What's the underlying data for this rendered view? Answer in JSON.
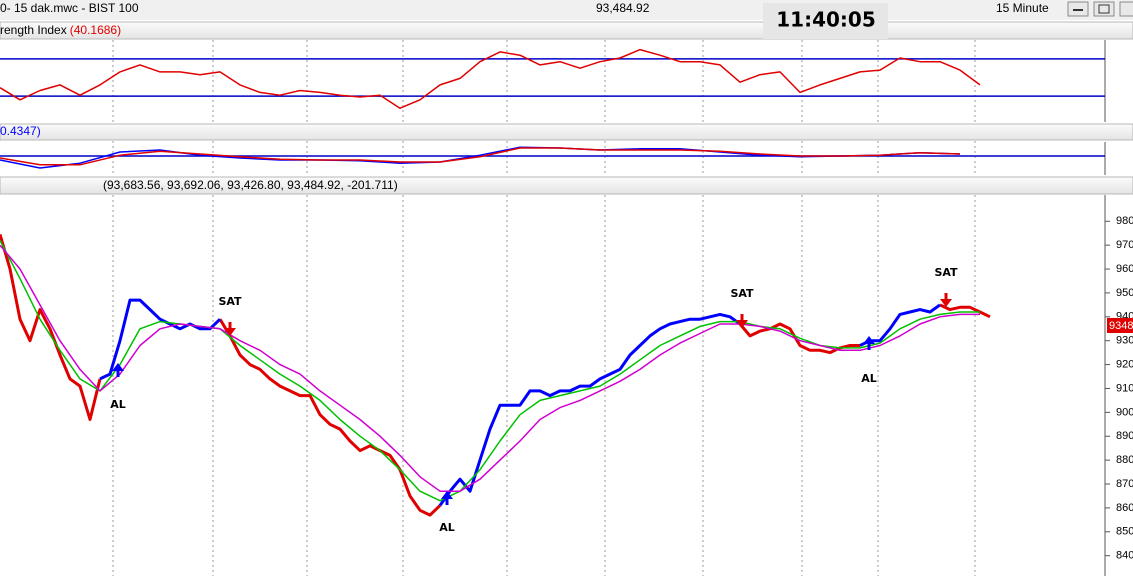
{
  "window": {
    "title": "0- 15 dak.mwc - BIST 100",
    "last_value": "93,484.92",
    "clock": "11:40:05",
    "interval": "15 Minute"
  },
  "chart_data": [
    {
      "type": "line",
      "title": "rength Index",
      "title_value": "(40.1686)",
      "ylim": [
        0,
        100
      ],
      "levels": [
        70,
        30
      ],
      "level_color": "#0000c8",
      "series": [
        {
          "color": "#e00000",
          "values": [
            39,
            26,
            36,
            42,
            31,
            42,
            56,
            63.5,
            56,
            56,
            53,
            56,
            42,
            34,
            31,
            36,
            34,
            31,
            29,
            31,
            17,
            26,
            42,
            49,
            67,
            77.5,
            74,
            63.5,
            67,
            60,
            67,
            71,
            80,
            74,
            67,
            67,
            63.5,
            45,
            53,
            56,
            34,
            42,
            49,
            56,
            58,
            71,
            67,
            67,
            58,
            42
          ]
        }
      ]
    },
    {
      "type": "line",
      "title_value": "0.4347)",
      "ylim": [
        -2,
        2
      ],
      "levels": [
        0
      ],
      "level_color": "#0000c8",
      "series": [
        {
          "color": "#0000ff",
          "values": [
            -0.5,
            -1.5,
            -0.9,
            0.5,
            0.75,
            0.1,
            -0.25,
            -0.5,
            -0.5,
            -0.6,
            -0.9,
            -0.75,
            0.1,
            1.1,
            1,
            0.75,
            0.9,
            0.9,
            0.5,
            0.1,
            -0.1,
            0,
            0.1,
            0.4,
            0.25
          ]
        },
        {
          "color": "#e00000",
          "values": [
            -0.25,
            -1.1,
            -1.1,
            0.1,
            0.6,
            0.25,
            -0.1,
            -0.4,
            -0.5,
            -0.5,
            -0.75,
            -0.75,
            -0.1,
            1,
            1,
            0.75,
            0.75,
            0.75,
            0.6,
            0.25,
            0,
            0,
            0.1,
            0.4,
            0.25
          ]
        }
      ]
    },
    {
      "type": "line",
      "title": "(93,683.56, 93,692.06, 93,426.80, 93,484.92, -201.711)",
      "ylim": [
        834,
        991
      ],
      "yticks": [
        980,
        970,
        960,
        950,
        940,
        930,
        920,
        910,
        900,
        890,
        880,
        870,
        860,
        850,
        840
      ],
      "last_label": "9348",
      "last_label_color": "#e00000",
      "series": [
        {
          "color": "#e00000",
          "width": 3,
          "values": [
            974.5,
            960,
            939,
            930,
            943,
            935,
            924,
            914,
            911,
            897,
            914,
            null,
            null,
            null,
            null,
            null,
            null,
            null,
            null,
            null,
            null,
            null,
            939,
            932,
            924,
            920,
            918,
            914,
            911,
            909,
            907,
            907,
            899,
            895,
            893,
            888,
            884,
            886,
            884,
            882,
            876,
            865,
            859,
            857,
            861,
            null,
            null,
            null,
            null,
            null,
            null,
            null,
            null,
            null,
            null,
            null,
            null,
            null,
            null,
            null,
            null,
            null,
            null,
            null,
            null,
            null,
            null,
            null,
            null,
            null,
            null,
            null,
            null,
            null,
            937,
            932,
            934,
            935,
            937,
            935,
            928,
            926,
            926,
            925,
            927,
            928,
            928,
            null,
            null,
            null,
            null,
            null,
            null,
            null,
            945,
            943,
            944,
            944,
            942,
            940
          ]
        },
        {
          "color": "#0000ff",
          "width": 3,
          "values": [
            null,
            null,
            null,
            null,
            null,
            null,
            null,
            null,
            null,
            null,
            914,
            916,
            930,
            947,
            947,
            943,
            939,
            937,
            935,
            937,
            935,
            935,
            939,
            null,
            null,
            null,
            null,
            null,
            null,
            null,
            null,
            null,
            null,
            null,
            null,
            null,
            null,
            null,
            null,
            null,
            null,
            null,
            null,
            null,
            861,
            867,
            872,
            867,
            880,
            893,
            903,
            903,
            903,
            909,
            909,
            907,
            909,
            909,
            911,
            911,
            914,
            916,
            918,
            924,
            928,
            932,
            935,
            937,
            938,
            939,
            939,
            940,
            941,
            940,
            937,
            null,
            null,
            null,
            null,
            null,
            null,
            null,
            null,
            null,
            null,
            null,
            928,
            930,
            930,
            935,
            941,
            942,
            943,
            942,
            945,
            null,
            null,
            null,
            null,
            null
          ]
        },
        {
          "color": "#00c000",
          "width": 1.5,
          "values": [
            972,
            956,
            939,
            926,
            914,
            909,
            920,
            935,
            938,
            937,
            936,
            935,
            928,
            922,
            916,
            911,
            905,
            897,
            890,
            884,
            876,
            867,
            863,
            867,
            876,
            888,
            899,
            905,
            907,
            909,
            911,
            916,
            922,
            928,
            932,
            936,
            938,
            938,
            936,
            935,
            931,
            928,
            927,
            927,
            929,
            935,
            939,
            941,
            942,
            942
          ]
        },
        {
          "color": "#d000d0",
          "width": 1.5,
          "values": [
            970,
            960,
            945,
            930,
            918,
            909,
            916,
            928,
            935,
            937,
            936,
            935,
            930,
            926,
            920,
            916,
            909,
            903,
            897,
            890,
            882,
            873,
            867,
            867,
            872,
            880,
            888,
            897,
            902,
            905,
            909,
            913,
            918,
            924,
            929,
            933,
            937,
            937,
            936,
            934,
            930,
            928,
            926,
            926,
            928,
            932,
            937,
            940,
            941,
            941
          ]
        }
      ],
      "annotations": [
        {
          "text": "AL",
          "color": "#0000ff"
        },
        {
          "text": "SAT",
          "color": "#e00000"
        },
        {
          "text": "AL",
          "color": "#0000ff"
        },
        {
          "text": "SAT",
          "color": "#e00000"
        },
        {
          "text": "AL",
          "color": "#0000ff"
        },
        {
          "text": "SAT",
          "color": "#e00000"
        }
      ]
    }
  ]
}
